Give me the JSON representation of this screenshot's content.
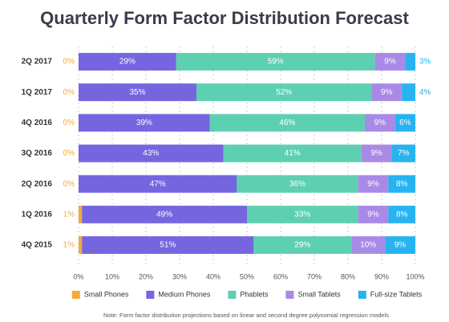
{
  "chart_data": {
    "type": "stacked-bar-horizontal",
    "title": "Quarterly Form Factor Distribution Forecast",
    "categories": [
      "2Q 2017",
      "1Q 2017",
      "4Q 2016",
      "3Q 2016",
      "2Q 2016",
      "1Q 2016",
      "4Q 2015"
    ],
    "series": [
      {
        "name": "Small Phones",
        "color": "#f5a93a",
        "values": [
          0,
          0,
          0,
          0,
          0,
          1,
          1
        ],
        "value_labels": [
          "0%",
          "0%",
          "0%",
          "0%",
          "0%",
          "1%",
          "1%"
        ]
      },
      {
        "name": "Medium Phones",
        "color": "#7566e0",
        "values": [
          29,
          35,
          39,
          43,
          47,
          49,
          51
        ],
        "value_labels": [
          "29%",
          "35%",
          "39%",
          "43%",
          "47%",
          "49%",
          "51%"
        ]
      },
      {
        "name": "Phablets",
        "color": "#5ed0b2",
        "values": [
          59,
          52,
          46,
          41,
          36,
          33,
          29
        ],
        "value_labels": [
          "59%",
          "52%",
          "46%",
          "41%",
          "36%",
          "33%",
          "29%"
        ]
      },
      {
        "name": "Small Tablets",
        "color": "#a88ae6",
        "values": [
          9,
          9,
          9,
          9,
          9,
          9,
          10
        ],
        "value_labels": [
          "9%",
          "9%",
          "9%",
          "9%",
          "9%",
          "9%",
          "10%"
        ]
      },
      {
        "name": "Full-size Tablets",
        "color": "#27b3f0",
        "values": [
          3,
          4,
          6,
          7,
          8,
          8,
          9
        ],
        "value_labels": [
          "3%",
          "4%",
          "6%",
          "7%",
          "8%",
          "8%",
          "9%"
        ]
      }
    ],
    "xlim": [
      0,
      100
    ],
    "xticks": [
      {
        "value": 0,
        "label": "0%"
      },
      {
        "value": 10,
        "label": "10%"
      },
      {
        "value": 20,
        "label": "20%"
      },
      {
        "value": 30,
        "label": "30%"
      },
      {
        "value": 40,
        "label": "40%"
      },
      {
        "value": 50,
        "label": "50%"
      },
      {
        "value": 60,
        "label": "60%"
      },
      {
        "value": 70,
        "label": "70%"
      },
      {
        "value": 80,
        "label": "80%"
      },
      {
        "value": 90,
        "label": "90%"
      },
      {
        "value": 100,
        "label": "100%"
      }
    ],
    "grid": true,
    "legend": "bottom",
    "note": "Note: Form factor distribution projections based on linear and second degree polynomial regression models"
  }
}
